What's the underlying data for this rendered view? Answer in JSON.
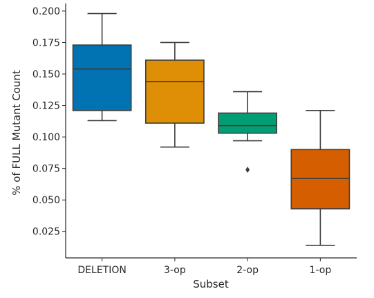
{
  "chart_data": {
    "type": "box",
    "xlabel": "Subset",
    "ylabel": "% of FULL Mutant Count",
    "ylim": [
      0.004,
      0.206
    ],
    "yticks": [
      0.025,
      0.05,
      0.075,
      0.1,
      0.125,
      0.15,
      0.175,
      0.2
    ],
    "ytick_labels": [
      "0.025",
      "0.050",
      "0.075",
      "0.100",
      "0.125",
      "0.150",
      "0.175",
      "0.200"
    ],
    "grid": false,
    "categories": [
      "DELETION",
      "3-op",
      "2-op",
      "1-op"
    ],
    "boxes": [
      {
        "category": "DELETION",
        "whisker_low": 0.113,
        "q1": 0.121,
        "median": 0.154,
        "q3": 0.173,
        "whisker_high": 0.198,
        "outliers": [],
        "color": "#0173b2"
      },
      {
        "category": "3-op",
        "whisker_low": 0.092,
        "q1": 0.111,
        "median": 0.144,
        "q3": 0.161,
        "whisker_high": 0.175,
        "outliers": [],
        "color": "#de8f05"
      },
      {
        "category": "2-op",
        "whisker_low": 0.097,
        "q1": 0.103,
        "median": 0.109,
        "q3": 0.119,
        "whisker_high": 0.136,
        "outliers": [
          0.074
        ],
        "color": "#029e73"
      },
      {
        "category": "1-op",
        "whisker_low": 0.014,
        "q1": 0.043,
        "median": 0.067,
        "q3": 0.09,
        "whisker_high": 0.121,
        "outliers": [],
        "color": "#d55e00"
      }
    ]
  }
}
